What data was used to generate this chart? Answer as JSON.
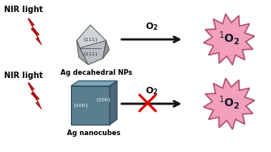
{
  "bg_color": "#ffffff",
  "nir_label": "NIR light",
  "lightning_color": "#cc0000",
  "lightning_edge": "#880000",
  "decahedral_label": "Ag decahedral NPs",
  "nanocube_label": "Ag nanocubes",
  "arrow_color": "#111111",
  "starburst_fill": "#f2a0bb",
  "starburst_edge": "#b05070",
  "face111_label": "{111}",
  "face100_label": "{100}",
  "cross_color": "#dd0000",
  "deca_light1": "#d0d5d8",
  "deca_light2": "#b8bfc3",
  "deca_mid": "#a8adb0",
  "deca_dark": "#909598",
  "cube_front": "#5a7e8e",
  "cube_top": "#7aaabb",
  "cube_right": "#4a6878",
  "cube_edge": "#2a4858"
}
